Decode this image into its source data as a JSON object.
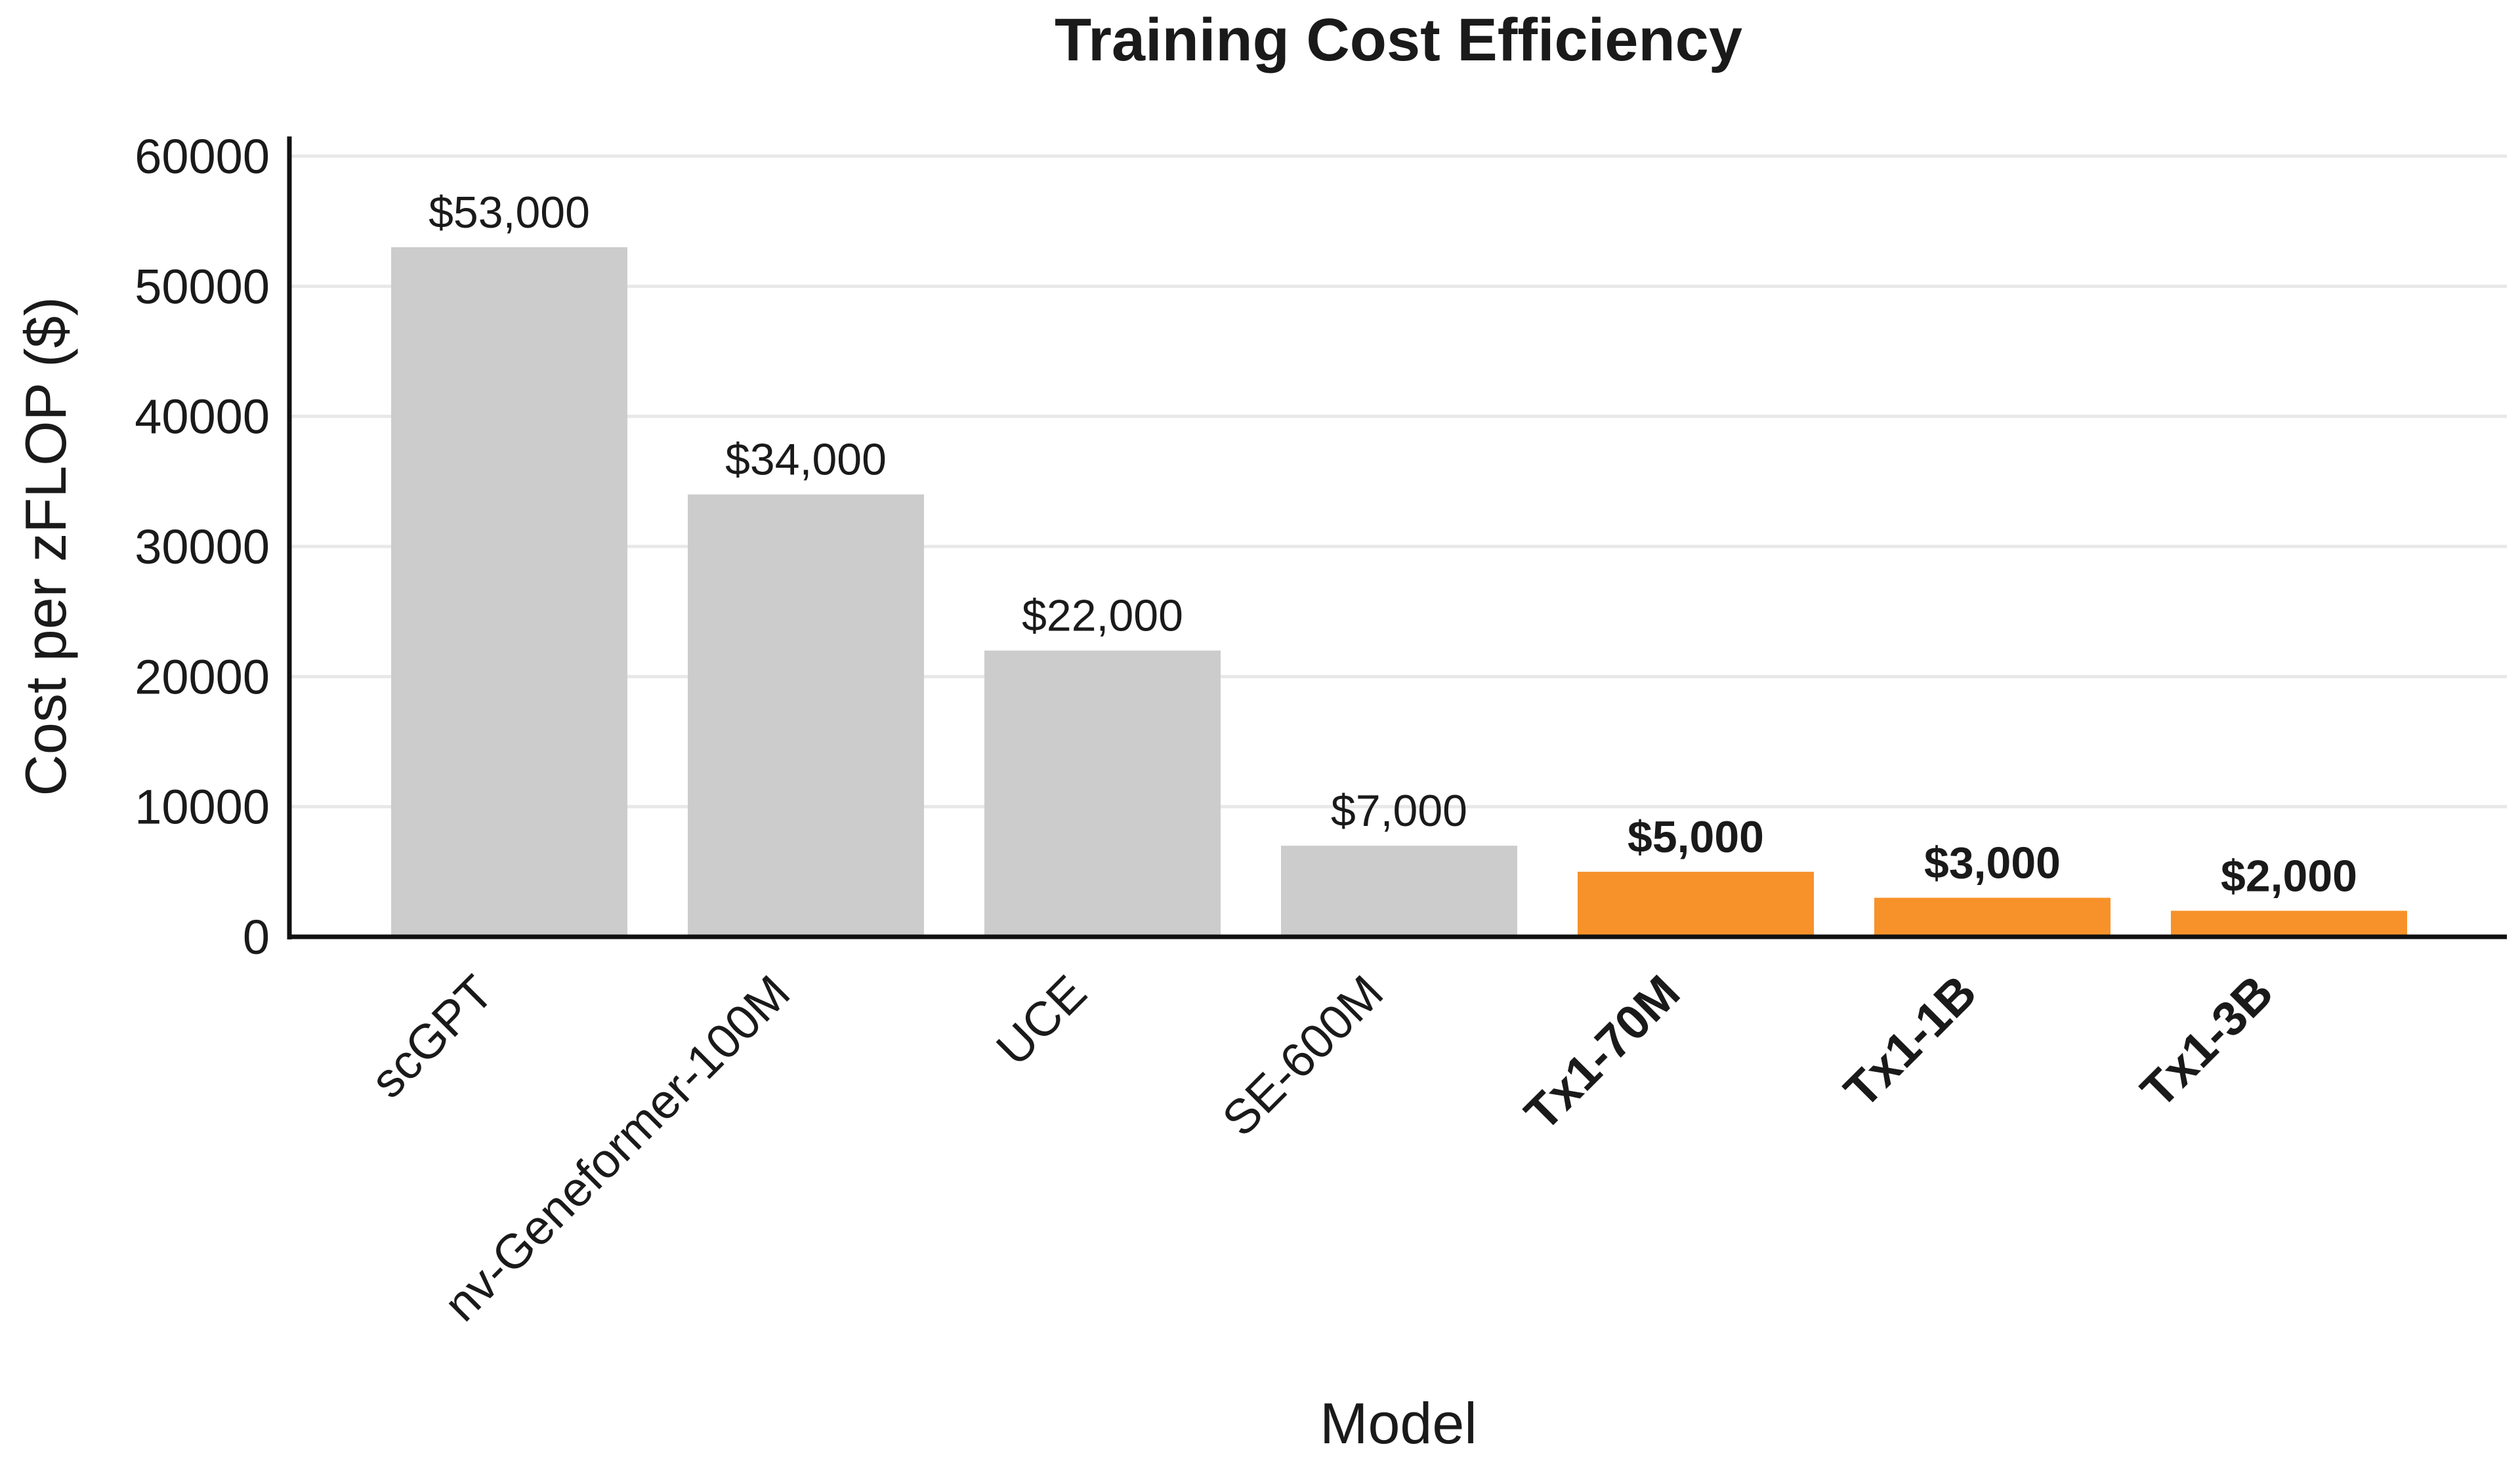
{
  "chart_data": {
    "type": "bar",
    "title": "Training Cost Efficiency",
    "x_label": "Model",
    "y_label": "Cost per zFLOP ($)",
    "categories": [
      "scGPT",
      "nv-Geneformer-100M",
      "UCE",
      "SE-600M",
      "Tx1-70M",
      "Tx1-1B",
      "Tx1-3B"
    ],
    "values": [
      53000,
      34000,
      22000,
      7000,
      5000,
      3000,
      2000
    ],
    "value_labels": [
      "$53,000",
      "$34,000",
      "$22,000",
      "$7,000",
      "$5,000",
      "$3,000",
      "$2,000"
    ],
    "colors": [
      "#cccccc",
      "#cccccc",
      "#cccccc",
      "#cccccc",
      "#f7922a",
      "#f7922a",
      "#f7922a"
    ],
    "label_weight": [
      "normal",
      "normal",
      "normal",
      "normal",
      "bold",
      "bold",
      "bold"
    ],
    "ylim": [
      0,
      60000
    ],
    "yticks": [
      0,
      10000,
      20000,
      30000,
      40000,
      50000,
      60000
    ],
    "grid": true
  }
}
